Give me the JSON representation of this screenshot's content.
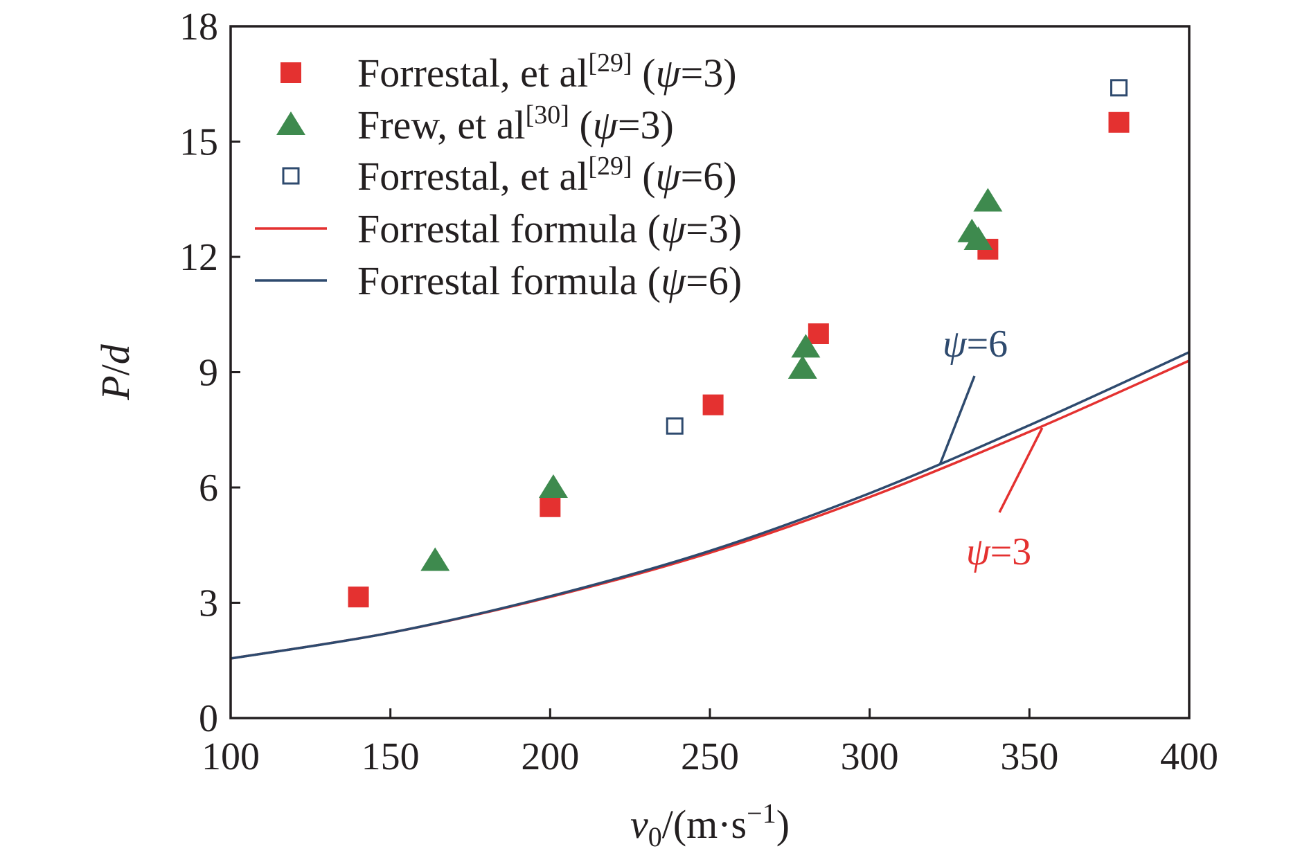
{
  "colors": {
    "axis": "#231f20",
    "red": "#e43130",
    "green": "#3e8a4e",
    "navy": "#2e4a6e"
  },
  "chart_data": {
    "type": "scatter",
    "title": "",
    "xlabel": {
      "main": "v",
      "sub": "0",
      "unit": "/(m·s",
      "sup": "−1",
      "close": ")"
    },
    "ylabel": {
      "p": "P",
      "slash": "/",
      "d": "d"
    },
    "xlim": [
      100,
      400
    ],
    "ylim": [
      0,
      18
    ],
    "xticks": [
      100,
      150,
      200,
      250,
      300,
      350,
      400
    ],
    "yticks": [
      0,
      3,
      6,
      9,
      12,
      15,
      18
    ],
    "grid": false,
    "legend_position": "top-left",
    "series": [
      {
        "key": "forrestal3",
        "kind": "points",
        "marker": "filled-square",
        "color": "#e43130",
        "label": {
          "pre": "Forrestal, et al",
          "ref": "[29]",
          "open": " (",
          "psi": "ψ",
          "eq": "=3)"
        },
        "points": [
          [
            140,
            3.15
          ],
          [
            200,
            5.5
          ],
          [
            251,
            8.15
          ],
          [
            284,
            10.0
          ],
          [
            337,
            12.2
          ],
          [
            378,
            15.5
          ]
        ]
      },
      {
        "key": "frew3",
        "kind": "points",
        "marker": "filled-triangle",
        "color": "#3e8a4e",
        "label": {
          "pre": "Frew, et al",
          "ref": "[30]",
          "open": " (",
          "psi": "ψ",
          "eq": "=3)"
        },
        "points": [
          [
            164,
            4.1
          ],
          [
            201,
            6.0
          ],
          [
            279,
            9.1
          ],
          [
            280,
            9.65
          ],
          [
            332,
            12.65
          ],
          [
            334,
            12.45
          ],
          [
            337,
            13.45
          ]
        ]
      },
      {
        "key": "forrestal6",
        "kind": "points",
        "marker": "open-square",
        "color": "#2e4a6e",
        "label": {
          "pre": "Forrestal, et al",
          "ref": "[29]",
          "open": " (",
          "psi": "ψ",
          "eq": "=6)"
        },
        "points": [
          [
            239,
            7.6
          ],
          [
            378,
            16.4
          ]
        ]
      },
      {
        "key": "formula3",
        "kind": "line",
        "color": "#e43130",
        "label": {
          "pre": "Forrestal formula",
          "ref": "",
          "open": " (",
          "psi": "ψ",
          "eq": "=3)"
        },
        "points": [
          [
            100,
            1.55
          ],
          [
            150,
            2.22
          ],
          [
            200,
            3.15
          ],
          [
            250,
            4.3
          ],
          [
            300,
            5.75
          ],
          [
            350,
            7.45
          ],
          [
            400,
            9.3
          ]
        ]
      },
      {
        "key": "formula6",
        "kind": "line",
        "color": "#2e4a6e",
        "label": {
          "pre": "Forrestal formula",
          "ref": "",
          "open": " (",
          "psi": "ψ",
          "eq": "=6)"
        },
        "points": [
          [
            100,
            1.55
          ],
          [
            150,
            2.22
          ],
          [
            200,
            3.17
          ],
          [
            250,
            4.35
          ],
          [
            300,
            5.85
          ],
          [
            350,
            7.62
          ],
          [
            400,
            9.52
          ]
        ]
      }
    ],
    "annotations": [
      {
        "key": "annot6",
        "psi": "ψ",
        "eq": "=6",
        "color": "#2e4a6e",
        "at": [
          322,
          6.6
        ]
      },
      {
        "key": "annot3",
        "psi": "ψ",
        "eq": "=3",
        "color": "#e43130",
        "at": [
          354,
          7.55
        ]
      }
    ]
  }
}
